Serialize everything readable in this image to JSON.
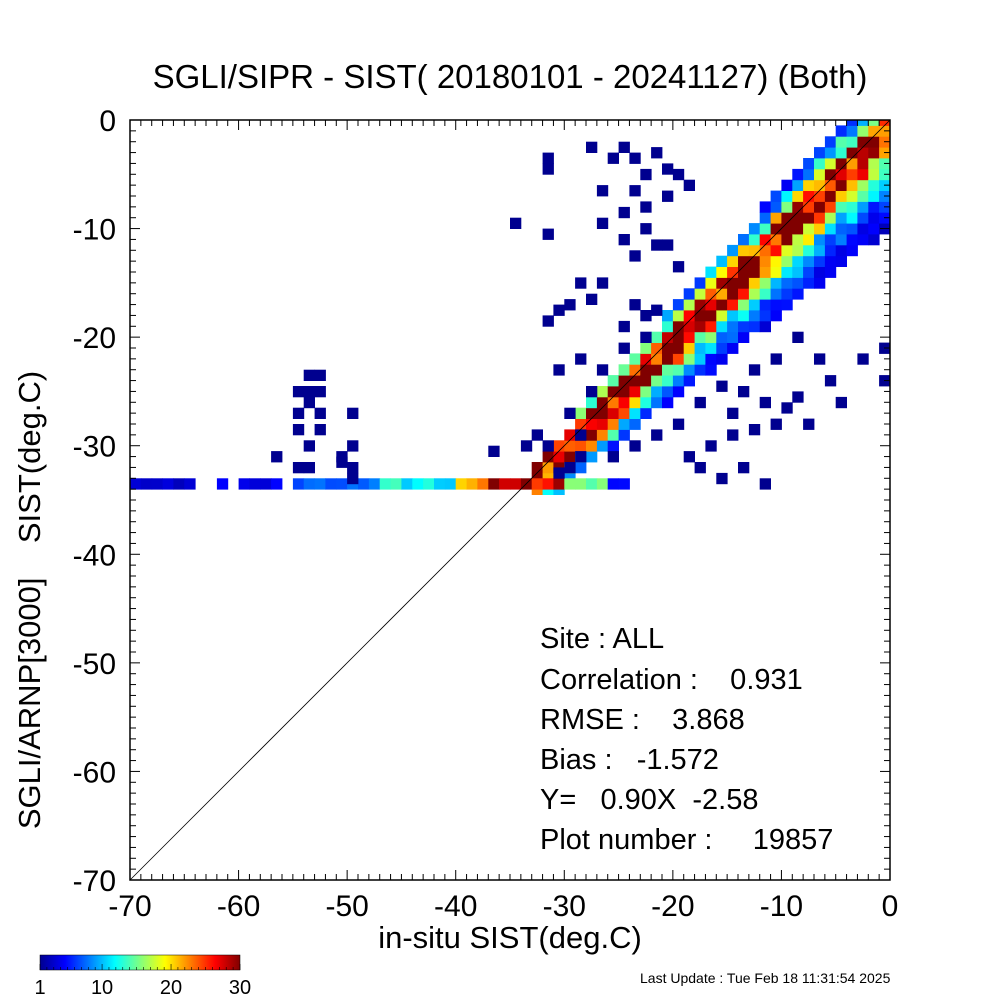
{
  "chart_data": {
    "type": "heatmap",
    "title": "SGLI/SIPR - SIST( 20180101 - 20241127) (Both)",
    "xlabel": "in-situ SIST(deg.C)",
    "ylabel": "SGLI/ARNP[3000]    SIST(deg.C)",
    "xlim": [
      -70,
      0
    ],
    "ylim": [
      -70,
      0
    ],
    "xticks": [
      -70,
      -60,
      -50,
      -40,
      -30,
      -20,
      -10,
      0
    ],
    "yticks": [
      0,
      -10,
      -20,
      -30,
      -40,
      -50,
      -60,
      -70
    ],
    "x_tick_labels": [
      "-70",
      "-60",
      "-50",
      "-40",
      "-30",
      "-20",
      "-10",
      "0"
    ],
    "y_tick_labels": [
      "0",
      "-10",
      "-20",
      "-30",
      "-40",
      "-50",
      "-60",
      "-70"
    ],
    "bin_size": 1,
    "reference_line": {
      "from": [
        -70,
        -70
      ],
      "to": [
        0,
        0
      ]
    },
    "colorbar": {
      "min": 1,
      "max": 30,
      "tick_values": [
        1,
        10,
        20,
        30
      ],
      "tick_labels": [
        "1",
        "10",
        "20",
        "30"
      ],
      "colormap": "jet",
      "stops": [
        "#00008f",
        "#0000ff",
        "#0080ff",
        "#00ffff",
        "#80ff80",
        "#ffff00",
        "#ff8000",
        "#ff0000",
        "#800000"
      ]
    },
    "diagonal_band": {
      "x_range": [
        -33,
        0
      ],
      "offset_core": 0,
      "spread_above": 4,
      "spread_below": 7,
      "peak_count": 30
    },
    "saturation_row": {
      "y": -33.5,
      "segments": [
        {
          "x0": -70,
          "x1": -64,
          "count": 3
        },
        {
          "x0": -62,
          "x1": -55,
          "count": 4
        },
        {
          "x0": -55,
          "x1": -47,
          "count": 7
        },
        {
          "x0": -47,
          "x1": -40,
          "count": 12
        },
        {
          "x0": -40,
          "x1": -37,
          "count": 20
        },
        {
          "x0": -37,
          "x1": -30,
          "count": 30
        },
        {
          "x0": -30,
          "x1": -26,
          "count": 15
        },
        {
          "x0": -26,
          "x1": -24,
          "count": 5
        }
      ]
    },
    "scattered_bins": [
      [
        -54,
        -23.5,
        1
      ],
      [
        -53,
        -23.5,
        1
      ],
      [
        -55,
        -25,
        1
      ],
      [
        -54,
        -25,
        1
      ],
      [
        -53,
        -25,
        1
      ],
      [
        -54,
        -26,
        1
      ],
      [
        -55,
        -27,
        1
      ],
      [
        -53,
        -27,
        1
      ],
      [
        -50,
        -27,
        1
      ],
      [
        -55,
        -28.5,
        1
      ],
      [
        -53,
        -28.5,
        1
      ],
      [
        -54,
        -30,
        1
      ],
      [
        -50,
        -30,
        1
      ],
      [
        -51,
        -31,
        1
      ],
      [
        -57,
        -31,
        1
      ],
      [
        -55,
        -32,
        1
      ],
      [
        -54,
        -32,
        1
      ],
      [
        -50,
        -32,
        1
      ],
      [
        -50,
        -33,
        1
      ],
      [
        -51,
        -31.5,
        1
      ],
      [
        -32,
        -3.5,
        1
      ],
      [
        -32,
        -4.5,
        1
      ],
      [
        -28,
        -2.5,
        1
      ],
      [
        -26,
        -3.5,
        1
      ],
      [
        -25,
        -2.5,
        1
      ],
      [
        -24,
        -3.5,
        1
      ],
      [
        -22,
        -3,
        1
      ],
      [
        -21,
        -4.5,
        1
      ],
      [
        -20,
        -5,
        1
      ],
      [
        -23,
        -5,
        1
      ],
      [
        -24,
        -6.5,
        1
      ],
      [
        -27,
        -6.5,
        1
      ],
      [
        -19,
        -6,
        1
      ],
      [
        -21,
        -7,
        1
      ],
      [
        -23,
        -8,
        1
      ],
      [
        -25,
        -8.5,
        1
      ],
      [
        -27,
        -9.5,
        1
      ],
      [
        -23,
        -10,
        1
      ],
      [
        -25,
        -11,
        1
      ],
      [
        -22,
        -11.5,
        1
      ],
      [
        -35,
        -9.5,
        1
      ],
      [
        -32,
        -10.5,
        1
      ],
      [
        -21,
        -11.5,
        1
      ],
      [
        -24,
        -12.5,
        1
      ],
      [
        -20,
        -13.5,
        1
      ],
      [
        -27,
        -15,
        1
      ],
      [
        -29,
        -15,
        1
      ],
      [
        -28,
        -16.5,
        1
      ],
      [
        -30,
        -17,
        1
      ],
      [
        -31,
        -17.5,
        1
      ],
      [
        -32,
        -18.5,
        1
      ],
      [
        -24,
        -17,
        1
      ],
      [
        -22,
        -17.5,
        1
      ],
      [
        -23,
        -18,
        1
      ],
      [
        -25,
        -19,
        1
      ],
      [
        -23,
        -20,
        1
      ],
      [
        -25,
        -21,
        1
      ],
      [
        -29,
        -22,
        1
      ],
      [
        -31,
        -23,
        1
      ],
      [
        -27,
        -23,
        1
      ],
      [
        -28,
        -25,
        1
      ],
      [
        -30,
        -27,
        1
      ],
      [
        -33,
        -29,
        1
      ],
      [
        -32,
        -30,
        1
      ],
      [
        -34,
        -30,
        1
      ],
      [
        -37,
        -30.5,
        1
      ],
      [
        -29,
        -31,
        1
      ],
      [
        -30,
        -32,
        1
      ],
      [
        -31,
        -32.5,
        1
      ],
      [
        -29,
        -29,
        1
      ],
      [
        -16,
        -24.5,
        1
      ],
      [
        -14,
        -25,
        1
      ],
      [
        -12,
        -26,
        1
      ],
      [
        -10,
        -26.5,
        1
      ],
      [
        -6,
        -24,
        1
      ],
      [
        -9,
        -25.5,
        1
      ],
      [
        -11,
        -28,
        1
      ],
      [
        -13,
        -28.5,
        1
      ],
      [
        -15,
        -29,
        1
      ],
      [
        -17,
        -30,
        1
      ],
      [
        -19,
        -31,
        1
      ],
      [
        -18,
        -32,
        1
      ],
      [
        -16,
        -33,
        1
      ],
      [
        -14,
        -32,
        1
      ],
      [
        -12,
        -33.5,
        1
      ],
      [
        -15,
        -27,
        1
      ],
      [
        -8,
        -28,
        1
      ],
      [
        -5,
        -26,
        1
      ],
      [
        -3,
        -22,
        1
      ],
      [
        -1,
        -24,
        1
      ],
      [
        -1,
        -21,
        1
      ],
      [
        -7,
        -22,
        1
      ],
      [
        -9,
        -20,
        1
      ],
      [
        -11,
        -22,
        1
      ],
      [
        -13,
        -23,
        1
      ],
      [
        -18,
        -26,
        1
      ],
      [
        -20,
        -28,
        1
      ],
      [
        -22,
        -29,
        1
      ],
      [
        -24,
        -30,
        1
      ],
      [
        -26,
        -31,
        1
      ]
    ],
    "stats": {
      "site": "Site : ALL",
      "correlation": "Correlation :    0.931",
      "rmse": "RMSE :    3.868",
      "bias": "Bias :   -1.572",
      "regression": "Y=   0.90X  -2.58",
      "plot_number": "Plot number :     19857"
    }
  },
  "footer": {
    "last_update": "Last Update : Tue Feb 18 11:31:54 2025"
  }
}
